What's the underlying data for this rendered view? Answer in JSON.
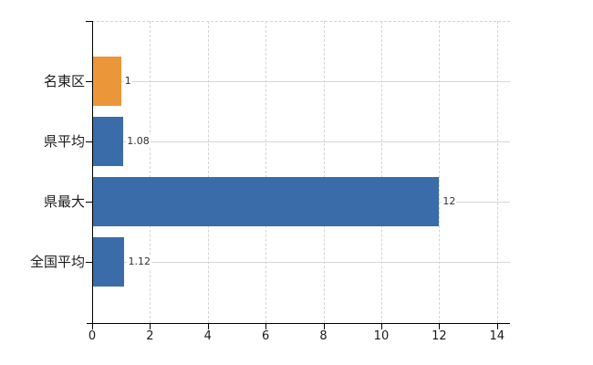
{
  "chart_data": {
    "type": "bar",
    "orientation": "horizontal",
    "title": "",
    "xlabel": "",
    "ylabel": "",
    "categories": [
      "名東区",
      "県平均",
      "県最大",
      "全国平均"
    ],
    "values": [
      1,
      1.08,
      12,
      1.12
    ],
    "value_labels": [
      "1",
      "1.08",
      "12",
      "1.12"
    ],
    "bar_colors": [
      "#EB9639",
      "#3A6CAA",
      "#3A6CAA",
      "#3A6CAA"
    ],
    "x_ticks": [
      "0",
      "2",
      "4",
      "6",
      "8",
      "10",
      "12",
      "14"
    ],
    "x_tick_values": [
      0,
      2,
      4,
      6,
      8,
      10,
      12,
      14
    ],
    "xlim": [
      0,
      14.45
    ],
    "grid": "on",
    "legend": "none",
    "colors": {
      "bar_orange": "#EB9639",
      "bar_blue": "#3A6CAA",
      "grid_solid": "#D6D6D6",
      "grid_dashed": "#D4D4D4",
      "axis": "#000000",
      "label_text": "#1A1A1A",
      "value_text": "#303030",
      "background": "#FFFFFF"
    }
  }
}
